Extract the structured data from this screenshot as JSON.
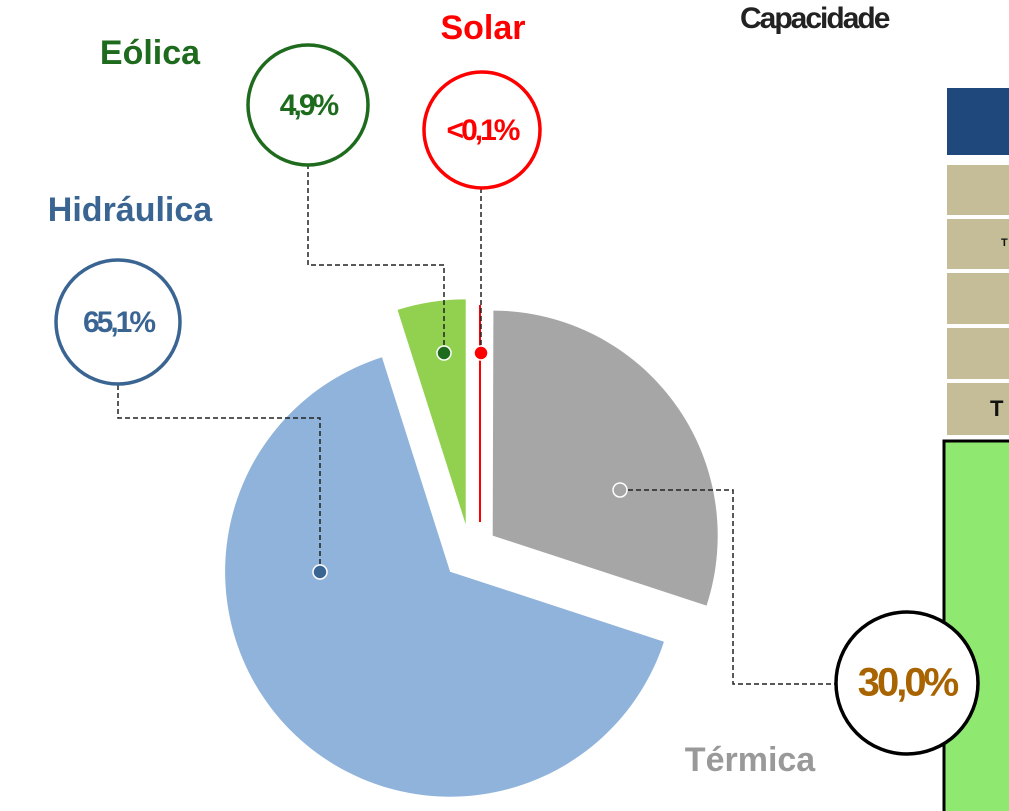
{
  "chart_data": {
    "type": "pie",
    "title": "Capacidade",
    "categories": [
      "Solar",
      "Térmica",
      "Hidráulica",
      "Eólica"
    ],
    "values": [
      0.05,
      30.0,
      65.1,
      4.9
    ],
    "value_labels": [
      "<0,1%",
      "30,0%",
      "65,1%",
      "4,9%"
    ],
    "colors": [
      "#ff0000",
      "#a6a6a6",
      "#8fb3da",
      "#92d050"
    ]
  },
  "table": {
    "rows": [
      [
        "T"
      ],
      [
        "T"
      ]
    ]
  }
}
